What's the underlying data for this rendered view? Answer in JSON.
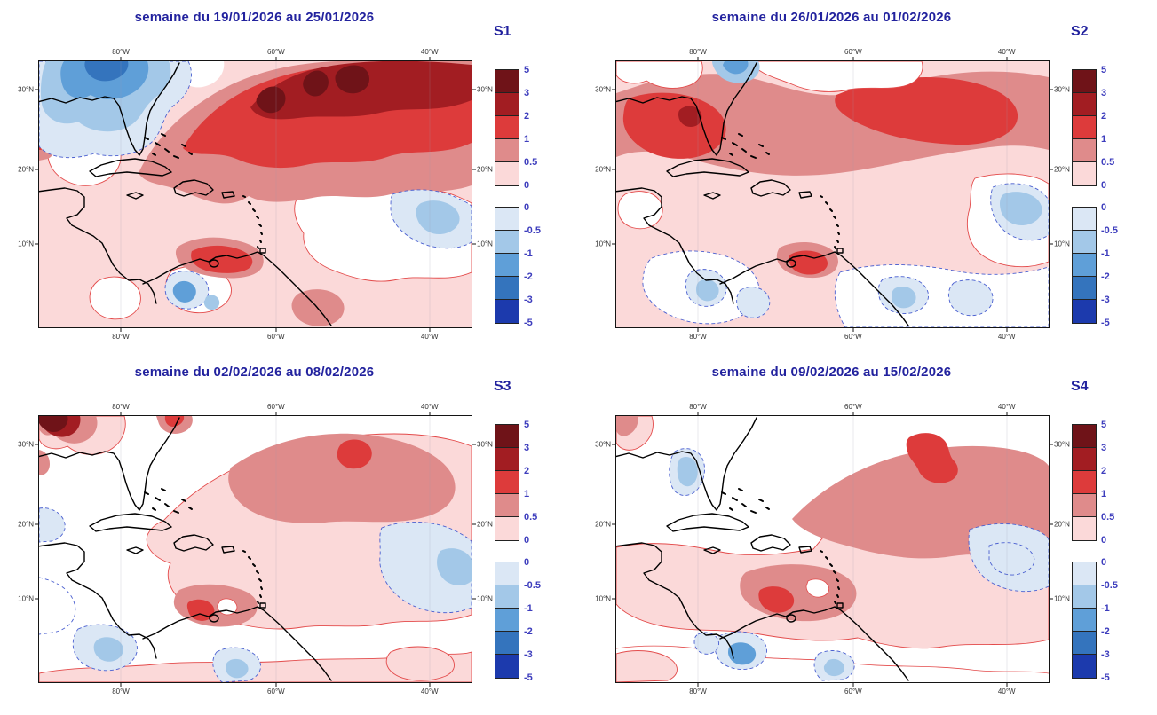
{
  "figure": {
    "panels": [
      {
        "label": "S1",
        "title": "semaine du 19/01/2026 au 25/01/2026"
      },
      {
        "label": "S2",
        "title": "semaine du 26/01/2026 au 01/02/2026"
      },
      {
        "label": "S3",
        "title": "semaine du 02/02/2026 au 08/02/2026"
      },
      {
        "label": "S4",
        "title": "semaine du 09/02/2026 au 15/02/2026"
      }
    ],
    "axes": {
      "longitude_ticks": [
        "80°W",
        "60°W",
        "40°W"
      ],
      "longitude_positions_pct": [
        18.9,
        54.8,
        90.3
      ],
      "latitude_ticks": [
        "30°N",
        "20°N",
        "10°N"
      ],
      "latitude_positions_pct": [
        10.5,
        40.5,
        68.5
      ]
    },
    "colorbar": {
      "positive": {
        "tick_labels": [
          "5",
          "3",
          "2",
          "1",
          "0.5",
          "0"
        ],
        "segment_colors_top_to_bottom": [
          "#6f1318",
          "#a21d22",
          "#dd3b3b",
          "#df8b8b",
          "#fbd9d9"
        ]
      },
      "negative": {
        "tick_labels": [
          "0",
          "-0.5",
          "-1",
          "-2",
          "-3",
          "-5"
        ],
        "segment_colors_top_to_bottom": [
          "#dbe7f5",
          "#a3c8e8",
          "#5f9fd8",
          "#3474bd",
          "#1c3aad"
        ]
      }
    },
    "colors": {
      "title_text": "#22229e",
      "colorbar_tick_text": "#3d3dbd",
      "axis_tick_text": "#333333",
      "coastline": "#000000",
      "warm_contour": "#e34a4a",
      "cold_contour": "#4a5fd0"
    }
  }
}
